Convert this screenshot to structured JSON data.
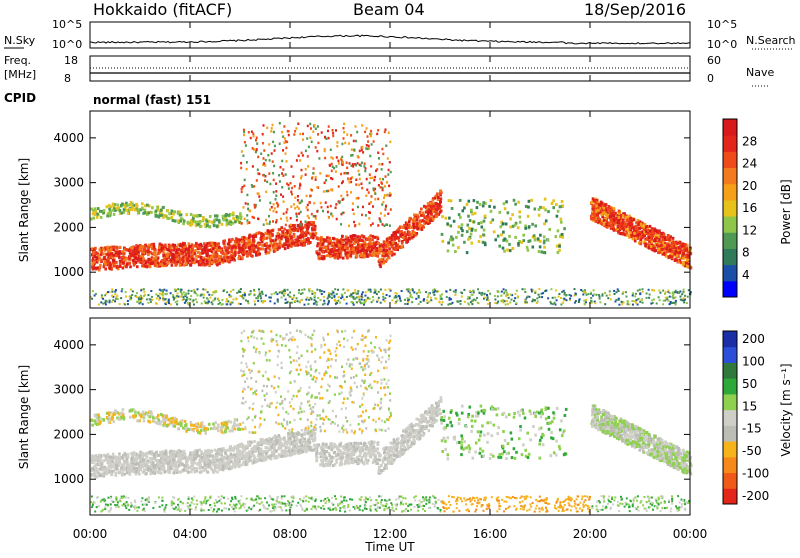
{
  "header": {
    "station": "Hokkaido (fitACF)",
    "beam": "Beam 04",
    "date": "18/Sep/2016"
  },
  "summary_panel": {
    "nsky_label": "N.Sky",
    "nsky_ticks": [
      "10^5",
      "10^0"
    ],
    "nsearch_label": "N.Search",
    "nsearch_ticks": [
      "10^5",
      "10^0"
    ],
    "freq_label": "Freq.",
    "freq_unit": "[MHz]",
    "freq_ticks": [
      "18",
      "8"
    ],
    "nave_label": "Nave",
    "nave_ticks": [
      "60",
      "0"
    ],
    "cpid_label": "CPID",
    "cpid_text": "normal (fast) 151"
  },
  "colors": {
    "power_scale": [
      "#0000ff",
      "#1a4fa8",
      "#2f7a58",
      "#4f9a52",
      "#8ec64a",
      "#e6c21a",
      "#f6a01a",
      "#f47a1e",
      "#ef4a1a",
      "#e3251a",
      "#d81a1a"
    ],
    "velocity_scale": [
      "#1a2ea6",
      "#2b4fd8",
      "#2f7a3a",
      "#2fa83a",
      "#8ed14e",
      "#cfcfc8",
      "#bdbdb8",
      "#f6b41a",
      "#f58a1a",
      "#ef5a1a",
      "#e3251a"
    ]
  },
  "chart_data": [
    {
      "type": "heatmap",
      "name": "power",
      "ylabel": "Slant Range [km]",
      "yticks": [
        "1000",
        "2000",
        "3000",
        "4000"
      ],
      "ylim": [
        200,
        4600
      ],
      "colorbar_label": "Power [dB]",
      "colorbar_ticks": [
        "4",
        "8",
        "12",
        "16",
        "20",
        "24",
        "28"
      ],
      "colorbar_range": [
        0,
        32
      ]
    },
    {
      "type": "heatmap",
      "name": "velocity",
      "ylabel": "Slant Range [km]",
      "yticks": [
        "1000",
        "2000",
        "3000",
        "4000"
      ],
      "ylim": [
        200,
        4600
      ],
      "colorbar_label": "Velocity [m s⁻¹]",
      "colorbar_ticks": [
        "200",
        "100",
        "50",
        "15",
        "-15",
        "-50",
        "-100",
        "-200"
      ]
    }
  ],
  "time_axis": {
    "label": "Time UT",
    "ticks": [
      "00:00",
      "04:00",
      "08:00",
      "12:00",
      "16:00",
      "20:00",
      "00:00"
    ],
    "range_hours": [
      0,
      24
    ]
  }
}
